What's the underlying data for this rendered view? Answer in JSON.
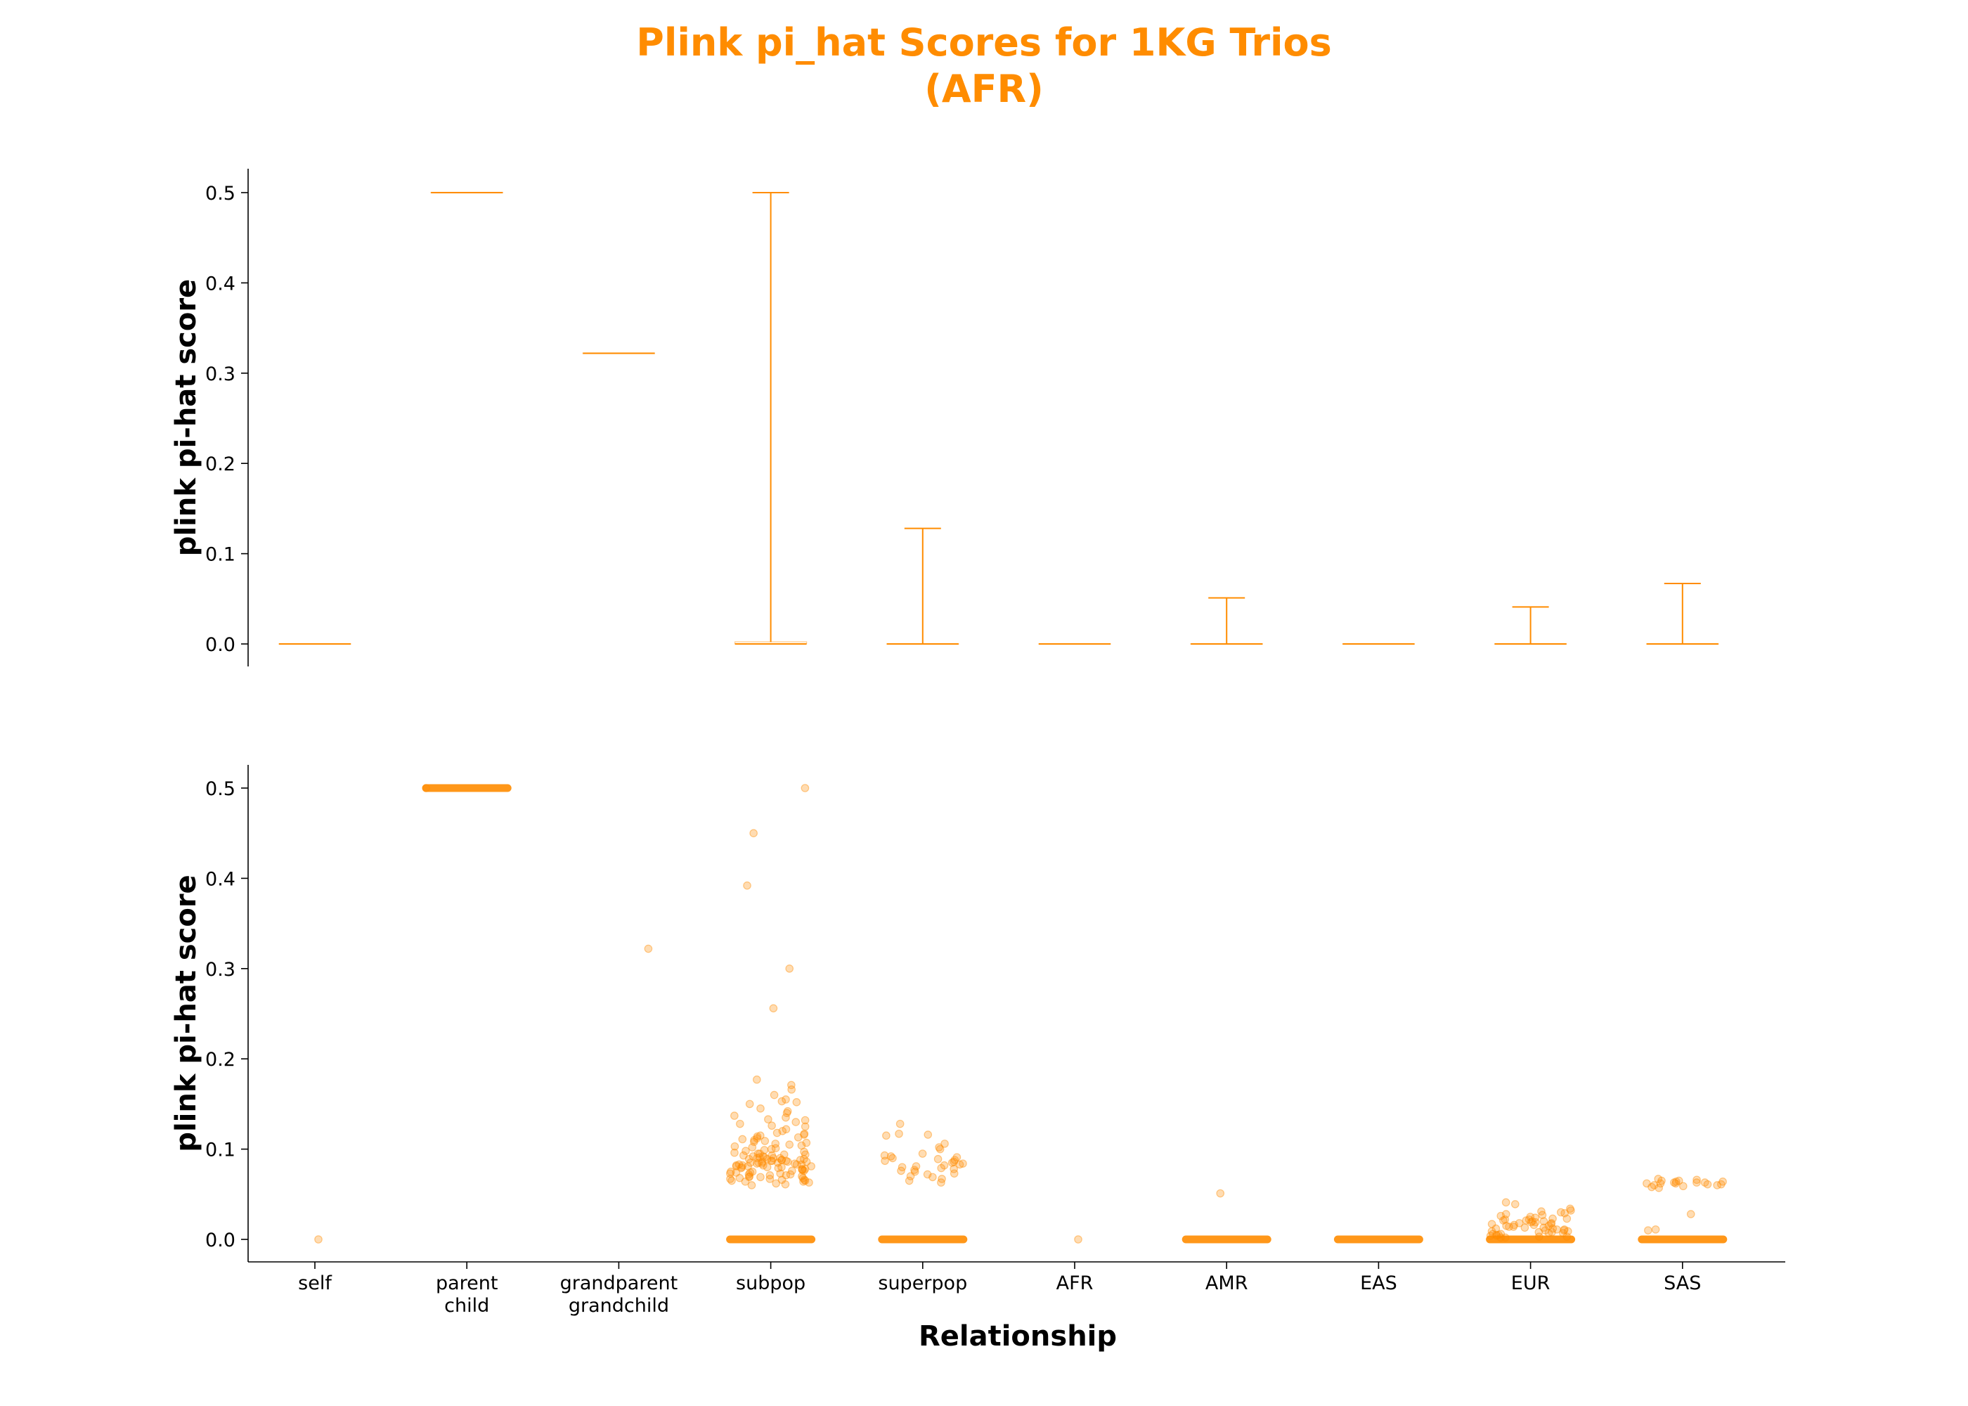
{
  "chart_data": {
    "type": "box-and-strip",
    "title_line1": "Plink pi_hat Scores for 1KG Trios",
    "title_line2": "(AFR)",
    "color": "#ff8c00",
    "xlabel": "Relationship",
    "ylabel": "plink pi-hat score",
    "categories": [
      [
        "self"
      ],
      [
        "parent",
        "child"
      ],
      [
        "grandparent",
        "grandchild"
      ],
      [
        "subpop"
      ],
      [
        "superpop"
      ],
      [
        "AFR"
      ],
      [
        "AMR"
      ],
      [
        "EAS"
      ],
      [
        "EUR"
      ],
      [
        "SAS"
      ]
    ],
    "ylim": [
      -0.025,
      0.525
    ],
    "yticks": [
      "0.0",
      "0.1",
      "0.2",
      "0.3",
      "0.4",
      "0.5"
    ],
    "grid": false,
    "legend": "none",
    "panels": [
      {
        "kind": "box",
        "boxes": [
          {
            "category": "self",
            "q1": 0.0,
            "median": 0.0,
            "q3": 0.0,
            "whisker_low": 0.0,
            "whisker_high": 0.0
          },
          {
            "category": "parent child",
            "q1": 0.5,
            "median": 0.5,
            "q3": 0.5,
            "whisker_low": 0.5,
            "whisker_high": 0.5
          },
          {
            "category": "grandparent grandchild",
            "q1": 0.322,
            "median": 0.322,
            "q3": 0.322,
            "whisker_low": 0.322,
            "whisker_high": 0.322
          },
          {
            "category": "subpop",
            "q1": 0.0,
            "median": 0.0,
            "q3": 0.002,
            "whisker_low": 0.0,
            "whisker_high": 0.5
          },
          {
            "category": "superpop",
            "q1": 0.0,
            "median": 0.0,
            "q3": 0.0,
            "whisker_low": 0.0,
            "whisker_high": 0.128
          },
          {
            "category": "AFR",
            "q1": 0.0,
            "median": 0.0,
            "q3": 0.0,
            "whisker_low": 0.0,
            "whisker_high": 0.0
          },
          {
            "category": "AMR",
            "q1": 0.0,
            "median": 0.0,
            "q3": 0.0,
            "whisker_low": 0.0,
            "whisker_high": 0.051
          },
          {
            "category": "EAS",
            "q1": 0.0,
            "median": 0.0,
            "q3": 0.0,
            "whisker_low": 0.0,
            "whisker_high": 0.0
          },
          {
            "category": "EUR",
            "q1": 0.0,
            "median": 0.0,
            "q3": 0.0,
            "whisker_low": 0.0,
            "whisker_high": 0.041
          },
          {
            "category": "SAS",
            "q1": 0.0,
            "median": 0.0,
            "q3": 0.0,
            "whisker_low": 0.0,
            "whisker_high": 0.067
          }
        ]
      },
      {
        "kind": "strip",
        "point_opacity": 0.3,
        "strips": [
          {
            "category": "self",
            "values": [
              0.0
            ]
          },
          {
            "category": "parent child",
            "values": [
              0.5
            ],
            "dense_bands": [
              0.5
            ]
          },
          {
            "category": "grandparent grandchild",
            "values": [
              0.322
            ]
          },
          {
            "category": "subpop",
            "dense_bands": [
              0.0
            ],
            "values": [
              0.5,
              0.45,
              0.392,
              0.3,
              0.256,
              0.177,
              0.171,
              0.166,
              0.16,
              0.155,
              0.153,
              0.152,
              0.15,
              0.145,
              0.142,
              0.14,
              0.137,
              0.135,
              0.133,
              0.132,
              0.13,
              0.128,
              0.126,
              0.125,
              0.122,
              0.12,
              0.118,
              0.117,
              0.116,
              0.115,
              0.114,
              0.113,
              0.112,
              0.111,
              0.11,
              0.109,
              0.108,
              0.107,
              0.106,
              0.105,
              0.104,
              0.103,
              0.102,
              0.101,
              0.1,
              0.099,
              0.098,
              0.097,
              0.096,
              0.095,
              0.095,
              0.094,
              0.094,
              0.093,
              0.093,
              0.092,
              0.092,
              0.091,
              0.091,
              0.09,
              0.09,
              0.09,
              0.089,
              0.089,
              0.089,
              0.088,
              0.088,
              0.088,
              0.087,
              0.087,
              0.087,
              0.086,
              0.086,
              0.086,
              0.085,
              0.085,
              0.085,
              0.084,
              0.084,
              0.084,
              0.083,
              0.083,
              0.083,
              0.082,
              0.082,
              0.082,
              0.081,
              0.081,
              0.081,
              0.08,
              0.08,
              0.08,
              0.079,
              0.079,
              0.078,
              0.078,
              0.077,
              0.077,
              0.076,
              0.076,
              0.075,
              0.075,
              0.074,
              0.074,
              0.073,
              0.073,
              0.072,
              0.072,
              0.071,
              0.071,
              0.07,
              0.07,
              0.069,
              0.069,
              0.068,
              0.068,
              0.067,
              0.067,
              0.066,
              0.066,
              0.065,
              0.065,
              0.064,
              0.064,
              0.063,
              0.062,
              0.061,
              0.06
            ]
          },
          {
            "category": "superpop",
            "dense_bands": [
              0.0
            ],
            "values": [
              0.128,
              0.117,
              0.116,
              0.115,
              0.106,
              0.102,
              0.1,
              0.095,
              0.093,
              0.092,
              0.091,
              0.09,
              0.089,
              0.088,
              0.087,
              0.086,
              0.085,
              0.084,
              0.083,
              0.082,
              0.081,
              0.08,
              0.079,
              0.078,
              0.077,
              0.076,
              0.075,
              0.073,
              0.072,
              0.07,
              0.069,
              0.067,
              0.065,
              0.063
            ]
          },
          {
            "category": "AFR",
            "values": [
              0.0
            ]
          },
          {
            "category": "AMR",
            "dense_bands": [
              0.0
            ],
            "values": [
              0.051
            ]
          },
          {
            "category": "EAS",
            "dense_bands": [
              0.0
            ],
            "values": []
          },
          {
            "category": "EUR",
            "dense_bands": [
              0.0
            ],
            "values": [
              0.041,
              0.039,
              0.034,
              0.032,
              0.031,
              0.03,
              0.029,
              0.028,
              0.027,
              0.026,
              0.025,
              0.024,
              0.023,
              0.023,
              0.022,
              0.022,
              0.021,
              0.021,
              0.02,
              0.02,
              0.019,
              0.019,
              0.018,
              0.018,
              0.017,
              0.017,
              0.016,
              0.016,
              0.015,
              0.015,
              0.014,
              0.014,
              0.013,
              0.013,
              0.012,
              0.012,
              0.011,
              0.011,
              0.01,
              0.01,
              0.009,
              0.009,
              0.008,
              0.008,
              0.007,
              0.007,
              0.006,
              0.006,
              0.005,
              0.005,
              0.004,
              0.004,
              0.003,
              0.003,
              0.002,
              0.002
            ]
          },
          {
            "category": "SAS",
            "dense_bands": [
              0.0
            ],
            "values": [
              0.067,
              0.066,
              0.065,
              0.065,
              0.064,
              0.064,
              0.063,
              0.063,
              0.063,
              0.062,
              0.062,
              0.062,
              0.061,
              0.061,
              0.06,
              0.06,
              0.059,
              0.058,
              0.057,
              0.028,
              0.011,
              0.01
            ]
          }
        ]
      }
    ]
  }
}
